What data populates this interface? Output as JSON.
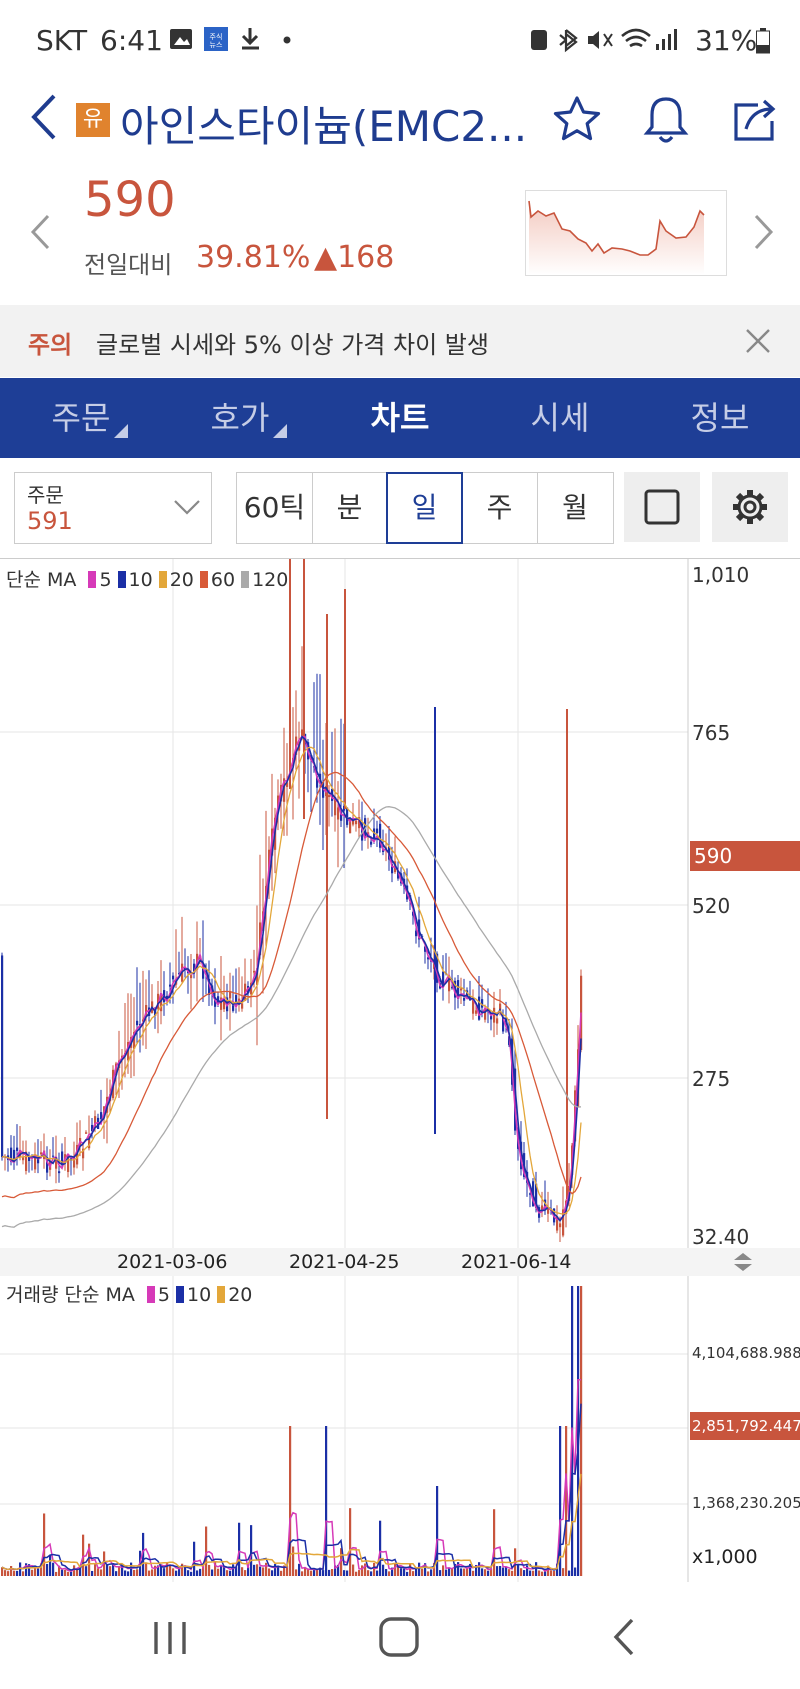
{
  "status_bar": {
    "carrier": "SKT",
    "time": "6:41",
    "battery": "31%"
  },
  "header": {
    "badge": "유",
    "title": "아인스타이늄(EMC2..."
  },
  "quote": {
    "price": "590",
    "change_label": "전일대비",
    "change_pct": "39.81%",
    "change_abs": "▲168"
  },
  "warning": {
    "label": "주의",
    "text": "글로벌 시세와 5% 이상 가격 차이 발생"
  },
  "tabs": [
    {
      "label": "주문",
      "has_menu": true
    },
    {
      "label": "호가",
      "has_menu": true
    },
    {
      "label": "차트",
      "active": true
    },
    {
      "label": "시세"
    },
    {
      "label": "정보"
    }
  ],
  "toolbar": {
    "order_label": "주문",
    "order_value": "591",
    "periods": [
      "60틱",
      "분",
      "일",
      "주",
      "월"
    ],
    "selected_period": "일"
  },
  "price_chart": {
    "ma_title": "단순 MA",
    "ma_periods": [
      "5",
      "10",
      "20",
      "60",
      "120"
    ],
    "ma_colors": [
      "#d63ab8",
      "#1b2fa6",
      "#e3a73a",
      "#d85a38",
      "#aaaaaa"
    ],
    "y_labels": [
      "1,010",
      "765",
      "520",
      "275",
      "32.40"
    ],
    "current_price_tag": "590",
    "x_labels": [
      "2021-03-06",
      "2021-04-25",
      "2021-06-14"
    ]
  },
  "volume_chart": {
    "title": "거래량 단순 MA",
    "ma_periods": [
      "5",
      "10",
      "20"
    ],
    "ma_colors": [
      "#d63ab8",
      "#1b2fa6",
      "#e3a73a"
    ],
    "y_labels": [
      "4,104,688.988",
      "1,368,230.205"
    ],
    "current_tag": "2,851,792.447",
    "unit": "x1,000"
  },
  "colors": {
    "up": "#c8553d",
    "down": "#1b2fa6",
    "brand": "#1e3e96"
  }
}
